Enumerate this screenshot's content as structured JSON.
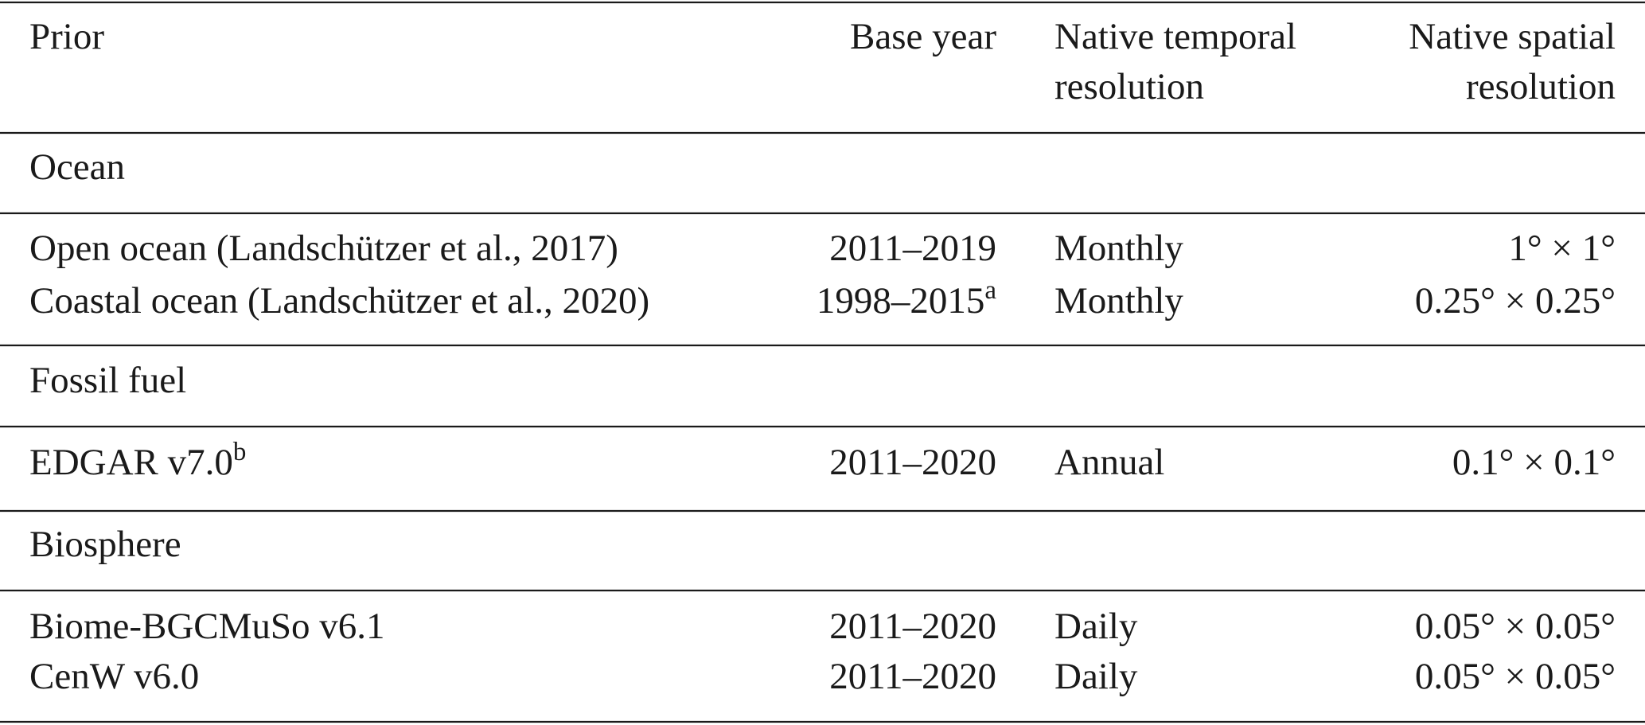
{
  "table": {
    "header": [
      [
        "Prior"
      ],
      [
        "Base year"
      ],
      [
        "Native temporal",
        "resolution"
      ],
      [
        "Native spatial",
        "resolution"
      ]
    ],
    "sections": [
      {
        "title": "Ocean",
        "rows": [
          [
            "Open ocean (Landschützer et al., 2017)",
            "2011–2019",
            "Monthly",
            "1° × 1°"
          ],
          [
            "Coastal ocean (Landschützer et al., 2020)",
            {
              "text": "1998–2015",
              "sup": "a"
            },
            "Monthly",
            "0.25° × 0.25°"
          ]
        ]
      },
      {
        "title": "Fossil fuel",
        "rows": [
          [
            {
              "text": "EDGAR v7.0",
              "sup": "b"
            },
            "2011–2020",
            "Annual",
            "0.1° × 0.1°"
          ]
        ]
      },
      {
        "title": "Biosphere",
        "rows": [
          [
            "Biome-BGCMuSo v6.1",
            "2011–2020",
            "Daily",
            "0.05° × 0.05°"
          ],
          [
            "CenW v6.0",
            "2011–2020",
            "Daily",
            "0.05° × 0.05°"
          ]
        ]
      }
    ]
  }
}
